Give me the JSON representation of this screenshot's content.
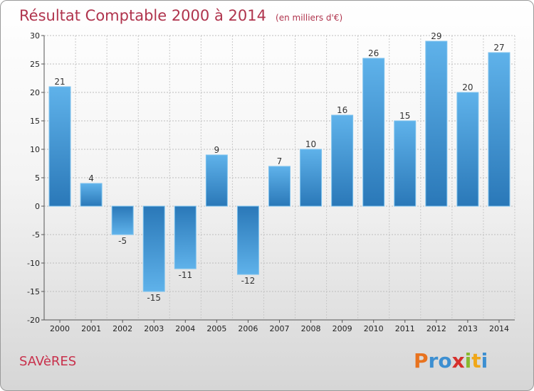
{
  "chart_data": {
    "type": "bar",
    "title": "Résultat Comptable 2000 à 2014",
    "subtitle": "(en milliers d'€)",
    "categories": [
      "2000",
      "2001",
      "2002",
      "2003",
      "2004",
      "2005",
      "2006",
      "2007",
      "2008",
      "2009",
      "2010",
      "2011",
      "2012",
      "2013",
      "2014"
    ],
    "values": [
      21,
      4,
      -5,
      -15,
      -11,
      9,
      -12,
      7,
      10,
      16,
      26,
      15,
      29,
      20,
      27
    ],
    "value_labels": [
      "21",
      "4",
      "-5",
      "-15",
      "-11",
      "9",
      "-12",
      "7",
      "10",
      "16",
      "26",
      "15",
      "29",
      "20",
      "27"
    ],
    "y_ticks": [
      "-20",
      "-15",
      "-10",
      "-5",
      "0",
      "5",
      "10",
      "15",
      "20",
      "25",
      "30"
    ],
    "ylim": [
      -20,
      30
    ],
    "grid": true,
    "colors": {
      "bar_light": "#5fb2ea",
      "bar_dark": "#2a78b8",
      "title": "#b0344d"
    }
  },
  "footer": {
    "commune": "SAVèRES",
    "brand_letters": [
      "P",
      "r",
      "o",
      "x",
      "i",
      "t",
      "i"
    ],
    "brand_colors": [
      "#e8731f",
      "#3d8fd1",
      "#3d8fd1",
      "#d6302c",
      "#88b92e",
      "#f0a719",
      "#3d8fd1"
    ]
  }
}
